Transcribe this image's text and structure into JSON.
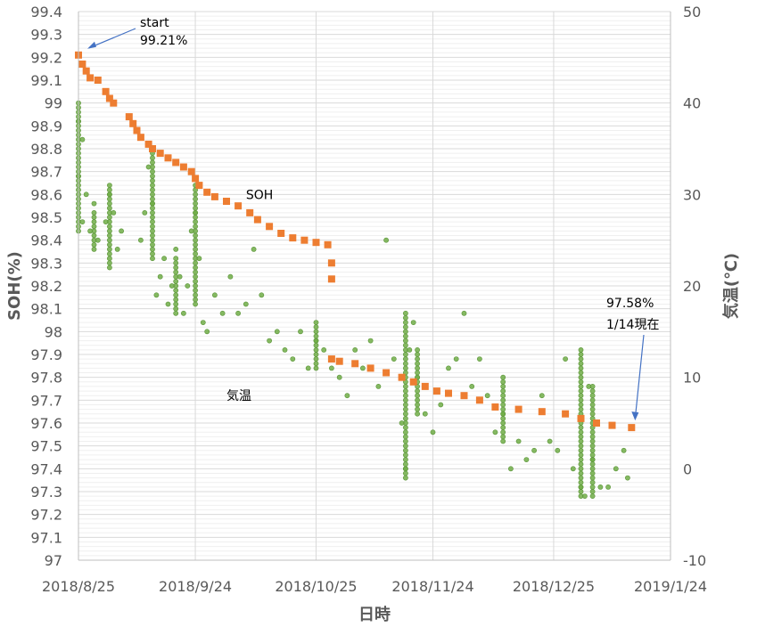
{
  "chart_data": {
    "type": "scatter",
    "xlabel": "日時",
    "ylabel_left": "SOH(%)",
    "ylabel_right": "気温(℃)",
    "x_range": [
      "2018-08-25",
      "2019-01-24"
    ],
    "x_ticks": [
      "2018/8/25",
      "2018/9/24",
      "2018/10/25",
      "2018/11/24",
      "2018/12/25",
      "2019/1/24"
    ],
    "y_left_range": [
      97,
      99.4
    ],
    "y_left_ticks": [
      "97",
      "97.1",
      "97.2",
      "97.3",
      "97.4",
      "97.5",
      "97.6",
      "97.7",
      "97.8",
      "97.9",
      "98",
      "98.1",
      "98.2",
      "98.3",
      "98.4",
      "98.5",
      "98.6",
      "98.7",
      "98.8",
      "98.9",
      "99",
      "99.1",
      "99.2",
      "99.3",
      "99.4"
    ],
    "y_right_range": [
      -10,
      50
    ],
    "y_right_ticks": [
      "-10",
      "0",
      "10",
      "20",
      "30",
      "40",
      "50"
    ],
    "grid": true,
    "colors": {
      "soh": "#ED7D31",
      "temperature": "#70AD47",
      "arrow": "#4472C4",
      "grid": "#D9D9D9"
    },
    "series": [
      {
        "name": "SOH",
        "axis": "left",
        "points": [
          {
            "x": "2018-08-25",
            "y": 99.21
          },
          {
            "x": "2018-08-26",
            "y": 99.17
          },
          {
            "x": "2018-08-27",
            "y": 99.14
          },
          {
            "x": "2018-08-28",
            "y": 99.11
          },
          {
            "x": "2018-08-30",
            "y": 99.1
          },
          {
            "x": "2018-09-01",
            "y": 99.05
          },
          {
            "x": "2018-09-02",
            "y": 99.02
          },
          {
            "x": "2018-09-03",
            "y": 99.0
          },
          {
            "x": "2018-09-07",
            "y": 98.94
          },
          {
            "x": "2018-09-08",
            "y": 98.91
          },
          {
            "x": "2018-09-09",
            "y": 98.88
          },
          {
            "x": "2018-09-10",
            "y": 98.85
          },
          {
            "x": "2018-09-12",
            "y": 98.82
          },
          {
            "x": "2018-09-13",
            "y": 98.8
          },
          {
            "x": "2018-09-15",
            "y": 98.78
          },
          {
            "x": "2018-09-17",
            "y": 98.76
          },
          {
            "x": "2018-09-19",
            "y": 98.74
          },
          {
            "x": "2018-09-21",
            "y": 98.72
          },
          {
            "x": "2018-09-23",
            "y": 98.7
          },
          {
            "x": "2018-09-24",
            "y": 98.67
          },
          {
            "x": "2018-09-25",
            "y": 98.64
          },
          {
            "x": "2018-09-27",
            "y": 98.61
          },
          {
            "x": "2018-09-29",
            "y": 98.59
          },
          {
            "x": "2018-10-02",
            "y": 98.57
          },
          {
            "x": "2018-10-05",
            "y": 98.55
          },
          {
            "x": "2018-10-08",
            "y": 98.52
          },
          {
            "x": "2018-10-10",
            "y": 98.49
          },
          {
            "x": "2018-10-13",
            "y": 98.46
          },
          {
            "x": "2018-10-16",
            "y": 98.43
          },
          {
            "x": "2018-10-19",
            "y": 98.41
          },
          {
            "x": "2018-10-22",
            "y": 98.4
          },
          {
            "x": "2018-10-25",
            "y": 98.39
          },
          {
            "x": "2018-10-28",
            "y": 98.38
          },
          {
            "x": "2018-10-29",
            "y": 98.3
          },
          {
            "x": "2018-10-29",
            "y": 98.23
          },
          {
            "x": "2018-10-29",
            "y": 97.88
          },
          {
            "x": "2018-10-31",
            "y": 97.87
          },
          {
            "x": "2018-11-04",
            "y": 97.86
          },
          {
            "x": "2018-11-08",
            "y": 97.84
          },
          {
            "x": "2018-11-12",
            "y": 97.82
          },
          {
            "x": "2018-11-16",
            "y": 97.8
          },
          {
            "x": "2018-11-19",
            "y": 97.78
          },
          {
            "x": "2018-11-22",
            "y": 97.76
          },
          {
            "x": "2018-11-25",
            "y": 97.74
          },
          {
            "x": "2018-11-28",
            "y": 97.73
          },
          {
            "x": "2018-12-02",
            "y": 97.72
          },
          {
            "x": "2018-12-06",
            "y": 97.7
          },
          {
            "x": "2018-12-10",
            "y": 97.67
          },
          {
            "x": "2018-12-16",
            "y": 97.66
          },
          {
            "x": "2018-12-22",
            "y": 97.65
          },
          {
            "x": "2018-12-28",
            "y": 97.64
          },
          {
            "x": "2019-01-01",
            "y": 97.62
          },
          {
            "x": "2019-01-05",
            "y": 97.6
          },
          {
            "x": "2019-01-09",
            "y": 97.59
          },
          {
            "x": "2019-01-14",
            "y": 97.58
          }
        ]
      },
      {
        "name": "気温",
        "axis": "right",
        "points": [
          {
            "x": "2018-08-25",
            "y": 38
          },
          {
            "x": "2018-08-25",
            "y": 32
          },
          {
            "x": "2018-08-26",
            "y": 36
          },
          {
            "x": "2018-08-26",
            "y": 27
          },
          {
            "x": "2018-08-27",
            "y": 30
          },
          {
            "x": "2018-08-28",
            "y": 26
          },
          {
            "x": "2018-08-29",
            "y": 29
          },
          {
            "x": "2018-08-30",
            "y": 25
          },
          {
            "x": "2018-09-01",
            "y": 27
          },
          {
            "x": "2018-09-02",
            "y": 30
          },
          {
            "x": "2018-09-03",
            "y": 28
          },
          {
            "x": "2018-09-04",
            "y": 24
          },
          {
            "x": "2018-09-05",
            "y": 26
          },
          {
            "x": "2018-09-10",
            "y": 25
          },
          {
            "x": "2018-09-11",
            "y": 28
          },
          {
            "x": "2018-09-12",
            "y": 33
          },
          {
            "x": "2018-09-13",
            "y": 29
          },
          {
            "x": "2018-09-14",
            "y": 19
          },
          {
            "x": "2018-09-15",
            "y": 21
          },
          {
            "x": "2018-09-16",
            "y": 23
          },
          {
            "x": "2018-09-17",
            "y": 18
          },
          {
            "x": "2018-09-18",
            "y": 20
          },
          {
            "x": "2018-09-19",
            "y": 24
          },
          {
            "x": "2018-09-20",
            "y": 21
          },
          {
            "x": "2018-09-21",
            "y": 17
          },
          {
            "x": "2018-09-22",
            "y": 20
          },
          {
            "x": "2018-09-23",
            "y": 26
          },
          {
            "x": "2018-09-24",
            "y": 28
          },
          {
            "x": "2018-09-25",
            "y": 23
          },
          {
            "x": "2018-09-26",
            "y": 16
          },
          {
            "x": "2018-09-27",
            "y": 15
          },
          {
            "x": "2018-09-29",
            "y": 19
          },
          {
            "x": "2018-10-01",
            "y": 17
          },
          {
            "x": "2018-10-03",
            "y": 21
          },
          {
            "x": "2018-10-05",
            "y": 17
          },
          {
            "x": "2018-10-07",
            "y": 18
          },
          {
            "x": "2018-10-09",
            "y": 24
          },
          {
            "x": "2018-10-11",
            "y": 19
          },
          {
            "x": "2018-10-13",
            "y": 14
          },
          {
            "x": "2018-10-15",
            "y": 15
          },
          {
            "x": "2018-10-17",
            "y": 13
          },
          {
            "x": "2018-10-19",
            "y": 12
          },
          {
            "x": "2018-10-21",
            "y": 15
          },
          {
            "x": "2018-10-23",
            "y": 11
          },
          {
            "x": "2018-10-25",
            "y": 14
          },
          {
            "x": "2018-10-27",
            "y": 13
          },
          {
            "x": "2018-10-29",
            "y": 11
          },
          {
            "x": "2018-10-31",
            "y": 10
          },
          {
            "x": "2018-11-02",
            "y": 8
          },
          {
            "x": "2018-11-04",
            "y": 13
          },
          {
            "x": "2018-11-06",
            "y": 11
          },
          {
            "x": "2018-11-08",
            "y": 14
          },
          {
            "x": "2018-11-10",
            "y": 9
          },
          {
            "x": "2018-11-12",
            "y": 25
          },
          {
            "x": "2018-11-14",
            "y": 12
          },
          {
            "x": "2018-11-16",
            "y": 5
          },
          {
            "x": "2018-11-17",
            "y": 0
          },
          {
            "x": "2018-11-18",
            "y": 13
          },
          {
            "x": "2018-11-19",
            "y": 16
          },
          {
            "x": "2018-11-20",
            "y": 10
          },
          {
            "x": "2018-11-22",
            "y": 6
          },
          {
            "x": "2018-11-24",
            "y": 4
          },
          {
            "x": "2018-11-26",
            "y": 7
          },
          {
            "x": "2018-11-28",
            "y": 11
          },
          {
            "x": "2018-11-30",
            "y": 12
          },
          {
            "x": "2018-12-02",
            "y": 17
          },
          {
            "x": "2018-12-04",
            "y": 9
          },
          {
            "x": "2018-12-06",
            "y": 12
          },
          {
            "x": "2018-12-08",
            "y": 8
          },
          {
            "x": "2018-12-10",
            "y": 4
          },
          {
            "x": "2018-12-12",
            "y": 6
          },
          {
            "x": "2018-12-14",
            "y": 0
          },
          {
            "x": "2018-12-16",
            "y": 3
          },
          {
            "x": "2018-12-18",
            "y": 1
          },
          {
            "x": "2018-12-20",
            "y": 2
          },
          {
            "x": "2018-12-22",
            "y": 8
          },
          {
            "x": "2018-12-24",
            "y": 3
          },
          {
            "x": "2018-12-26",
            "y": 2
          },
          {
            "x": "2018-12-28",
            "y": 12
          },
          {
            "x": "2018-12-30",
            "y": 0
          },
          {
            "x": "2019-01-01",
            "y": -2
          },
          {
            "x": "2019-01-02",
            "y": -3
          },
          {
            "x": "2019-01-03",
            "y": 9
          },
          {
            "x": "2019-01-04",
            "y": 1
          },
          {
            "x": "2019-01-06",
            "y": -2
          },
          {
            "x": "2019-01-08",
            "y": -2
          },
          {
            "x": "2019-01-10",
            "y": 0
          },
          {
            "x": "2019-01-12",
            "y": 2
          },
          {
            "x": "2019-01-13",
            "y": -1
          }
        ],
        "vertical_spreads": [
          {
            "x": "2018-08-25",
            "y_min": 26,
            "y_max": 40
          },
          {
            "x": "2018-08-29",
            "y_min": 24,
            "y_max": 28
          },
          {
            "x": "2018-09-02",
            "y_min": 22,
            "y_max": 31
          },
          {
            "x": "2018-09-13",
            "y_min": 23,
            "y_max": 35
          },
          {
            "x": "2018-09-19",
            "y_min": 17,
            "y_max": 23
          },
          {
            "x": "2018-09-24",
            "y_min": 18,
            "y_max": 31
          },
          {
            "x": "2018-10-25",
            "y_min": 11,
            "y_max": 16
          },
          {
            "x": "2018-11-17",
            "y_min": -1,
            "y_max": 17
          },
          {
            "x": "2018-11-20",
            "y_min": 6,
            "y_max": 13
          },
          {
            "x": "2018-12-12",
            "y_min": 3,
            "y_max": 10
          },
          {
            "x": "2019-01-01",
            "y_min": -3,
            "y_max": 13
          },
          {
            "x": "2019-01-04",
            "y_min": -3,
            "y_max": 9
          }
        ]
      }
    ],
    "annotations": [
      {
        "text": "start",
        "text2": "99.21%",
        "x": "2018-08-25",
        "y": 99.21
      },
      {
        "text": "97.58%",
        "text2": "1/14現在",
        "x": "2019-01-14",
        "y": 97.58
      },
      {
        "text": "SOH",
        "x": "2018-10-07",
        "y": 98.6
      },
      {
        "text": "気温",
        "x": "2018-10-02",
        "y": 97.72
      }
    ]
  }
}
